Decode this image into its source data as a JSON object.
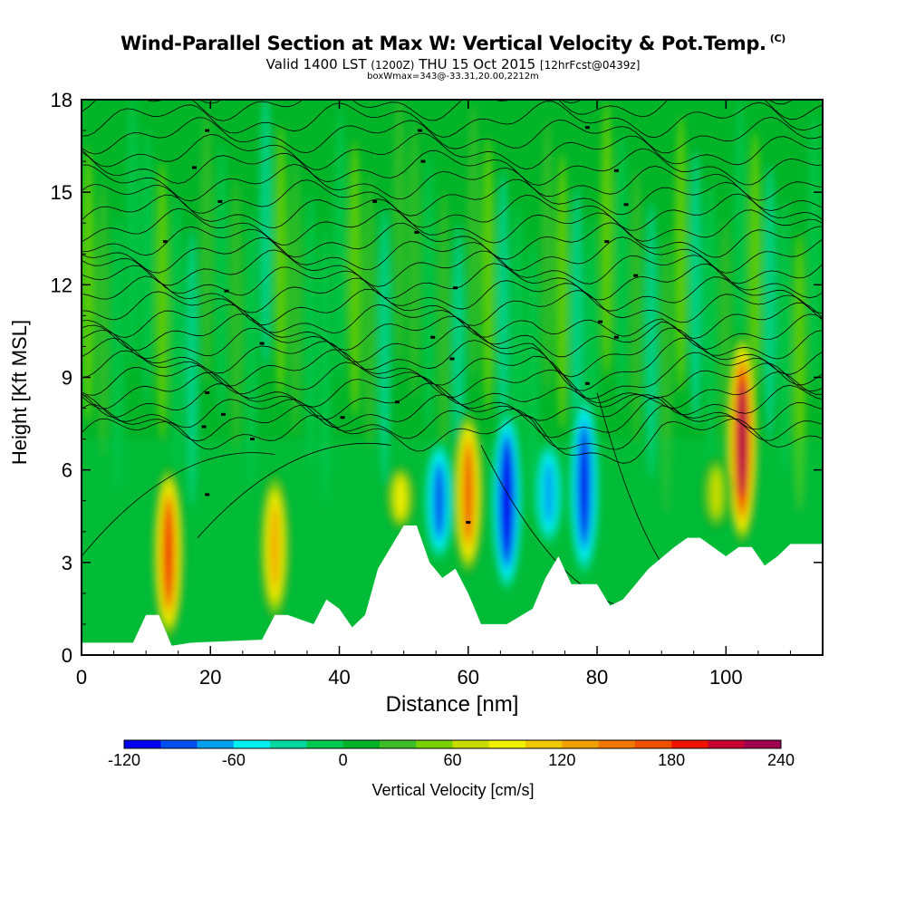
{
  "header": {
    "title": "Wind-Parallel Section at Max W: Vertical Velocity & Pot.Temp.",
    "copyright": "(C)",
    "valid_prefix": "Valid 1400 LST",
    "valid_utc": "(1200Z)",
    "valid_date": "THU 15 Oct 2015",
    "forecast": "[12hrFcst@0439z]",
    "boxwmax": "boxWmax=343@-33.31,20.00,2212m"
  },
  "chart_data": {
    "type": "heatmap",
    "xlabel": "Distance [nm]",
    "ylabel": "Height [Kft MSL]",
    "xlim": [
      0,
      115
    ],
    "ylim": [
      0,
      18
    ],
    "xticks": [
      "0",
      "20",
      "40",
      "60",
      "80",
      "100"
    ],
    "yticks": [
      "0",
      "3",
      "6",
      "9",
      "12",
      "15",
      "18"
    ],
    "colorbar": {
      "label": "Vertical Velocity [cm/s]",
      "min": -120,
      "max": 240,
      "step": 20,
      "tick_labels": [
        "-120",
        "-60",
        "0",
        "60",
        "120",
        "180",
        "240"
      ],
      "colors": [
        "#0000f0",
        "#0050f0",
        "#00a0f0",
        "#00f0f0",
        "#00d8a0",
        "#00c850",
        "#00b428",
        "#3cbe28",
        "#78d200",
        "#c8dc00",
        "#f0f000",
        "#f0c800",
        "#f0a000",
        "#f07800",
        "#f05000",
        "#f01400",
        "#c80032",
        "#a00050"
      ]
    },
    "updrafts": [
      {
        "x": 13.5,
        "zmin": 0.4,
        "zmax": 6.2,
        "w": 170
      },
      {
        "x": 30.0,
        "zmin": 1.0,
        "zmax": 6.0,
        "w": 110
      },
      {
        "x": 49.5,
        "zmin": 4.0,
        "zmax": 6.2,
        "w": 80
      },
      {
        "x": 60.0,
        "zmin": 2.5,
        "zmax": 8.0,
        "w": 150
      },
      {
        "x": 102.5,
        "zmin": 3.5,
        "zmax": 10.5,
        "w": 240
      },
      {
        "x": 98.5,
        "zmin": 4.0,
        "zmax": 6.5,
        "w": 60
      }
    ],
    "downdrafts": [
      {
        "x": 55.5,
        "zmin": 3.0,
        "zmax": 7.0,
        "w": -80
      },
      {
        "x": 66.0,
        "zmin": 2.0,
        "zmax": 8.0,
        "w": -120
      },
      {
        "x": 78.0,
        "zmin": 2.5,
        "zmax": 8.5,
        "w": -100
      },
      {
        "x": 72.5,
        "zmin": 3.5,
        "zmax": 7.0,
        "w": -50
      }
    ],
    "terrain": [
      [
        0,
        0.4
      ],
      [
        8,
        0.4
      ],
      [
        10,
        1.3
      ],
      [
        12,
        1.3
      ],
      [
        14,
        0.3
      ],
      [
        17,
        0.4
      ],
      [
        28,
        0.5
      ],
      [
        30,
        1.3
      ],
      [
        32,
        1.3
      ],
      [
        36,
        1.0
      ],
      [
        38,
        1.8
      ],
      [
        40,
        1.5
      ],
      [
        42,
        0.9
      ],
      [
        44,
        1.3
      ],
      [
        46,
        2.8
      ],
      [
        48,
        3.5
      ],
      [
        50,
        4.2
      ],
      [
        52,
        4.2
      ],
      [
        54,
        3.0
      ],
      [
        56,
        2.5
      ],
      [
        58,
        2.8
      ],
      [
        60,
        2.0
      ],
      [
        62,
        1.0
      ],
      [
        66,
        1.0
      ],
      [
        70,
        1.5
      ],
      [
        72,
        2.5
      ],
      [
        74,
        3.2
      ],
      [
        76,
        2.3
      ],
      [
        78,
        2.3
      ],
      [
        80,
        2.3
      ],
      [
        82,
        1.6
      ],
      [
        84,
        1.8
      ],
      [
        86,
        2.3
      ],
      [
        88,
        2.8
      ],
      [
        92,
        3.5
      ],
      [
        94,
        3.8
      ],
      [
        96,
        3.8
      ],
      [
        100,
        3.2
      ],
      [
        102,
        3.5
      ],
      [
        104,
        3.5
      ],
      [
        106,
        2.9
      ],
      [
        108,
        3.2
      ],
      [
        110,
        3.6
      ],
      [
        115,
        3.6
      ]
    ]
  }
}
